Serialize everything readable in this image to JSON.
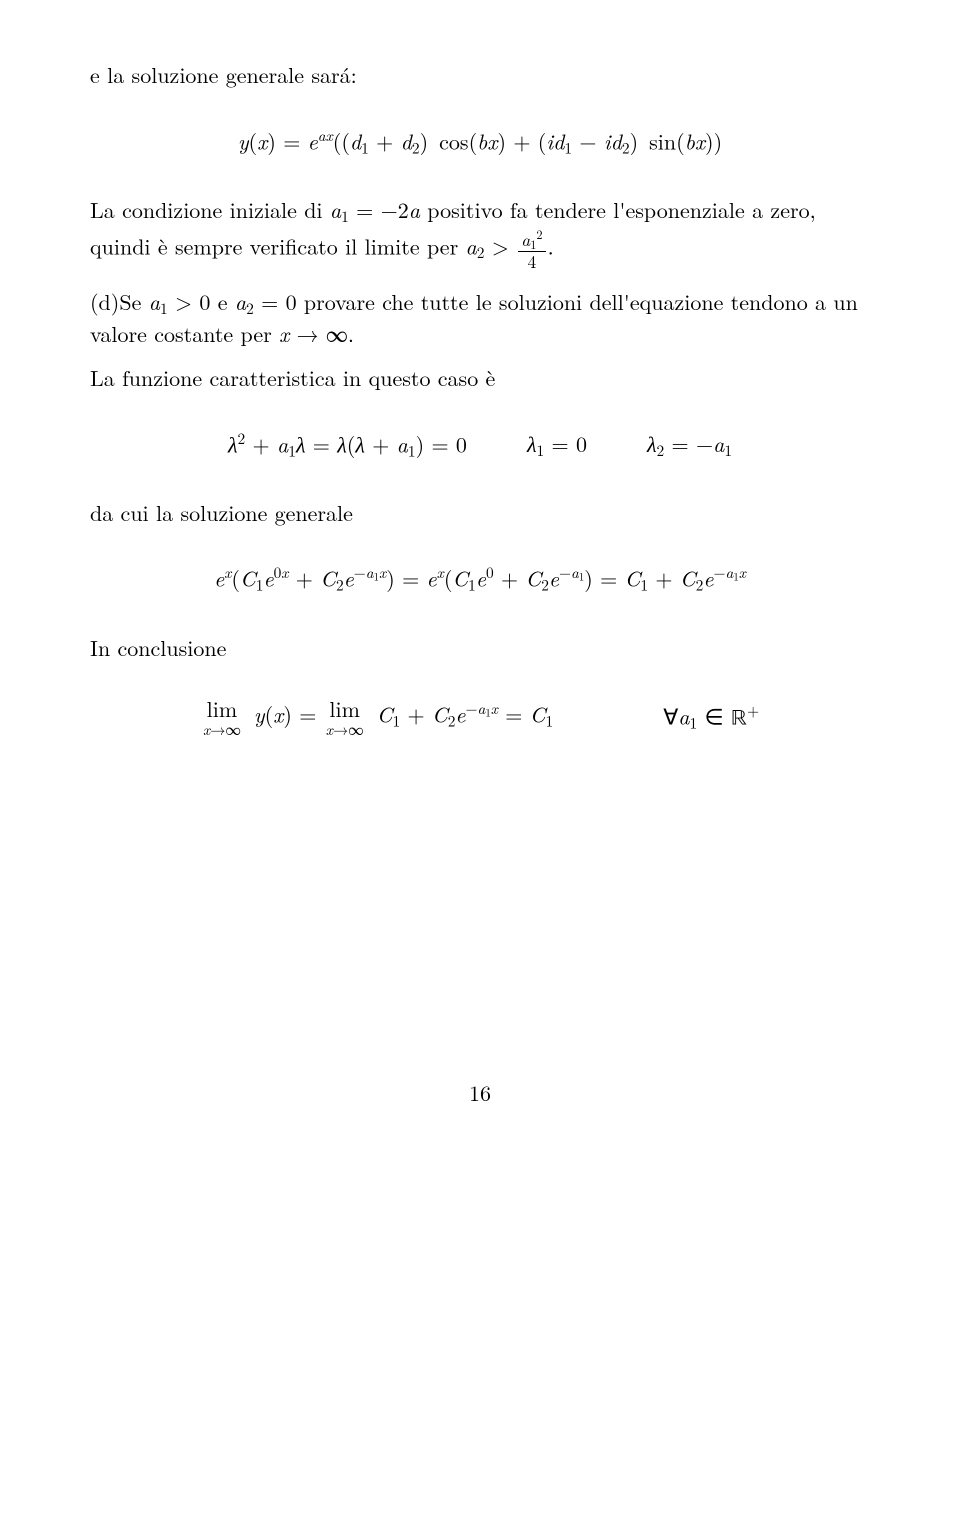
{
  "p1": "e la soluzione generale sará:",
  "eq1_html": "<span class='it'>y</span>(<span class='it'>x</span>) = <span class='it'>e</span><sup><span class='it'>ax</span></sup>((<span class='it'>d</span><sub>1</sub> + <span class='it'>d</span><sub>2</sub>)&nbsp;cos(<span class='it'>bx</span>) + (<span class='it'>id</span><sub>1</sub> − <span class='it'>id</span><sub>2</sub>)&nbsp;sin(<span class='it'>bx</span>))",
  "p2_html": "La condizione iniziale di <span class='it'>a</span><sub>1</sub> = −2<span class='it'>a</span> positivo fa tendere l'esponenziale a zero, quindi è sempre verificato il limite per <span class='it'>a</span><sub>2</sub> &gt; <span class='frac'><span class='num'><span class='it'>a</span><sub>1</sub><sup>2</sup></span><span class='den'>4</span></span>.",
  "p3_html": "(d)Se <span class='it'>a</span><sub>1</sub> &gt; 0 e <span class='it'>a</span><sub>2</sub> = 0 provare che tutte le soluzioni dell'equazione tendono a un valore costante per <span class='it'>x</span> → ∞.",
  "p4": "La funzione caratteristica in questo caso è",
  "eq2_left_html": "<span class='it'>λ</span><sup>2</sup> + <span class='it'>a</span><sub>1</sub><span class='it'>λ</span> = <span class='it'>λ</span>(<span class='it'>λ</span> + <span class='it'>a</span><sub>1</sub>) = 0",
  "eq2_mid_html": "<span class='it'>λ</span><sub>1</sub> = 0",
  "eq2_right_html": "<span class='it'>λ</span><sub>2</sub> = −<span class='it'>a</span><sub>1</sub>",
  "p5": "da cui la soluzione generale",
  "eq3_html": "<span class='it'>e</span><sup><span class='it'>x</span></sup>(<span class='it'>C</span><sub>1</sub><span class='it'>e</span><sup>0<span class='it'>x</span></sup> + <span class='it'>C</span><sub>2</sub><span class='it'>e</span><sup>−<span class='it'>a</span><sub>1</sub><span class='it'>x</span></sup>) = <span class='it'>e</span><sup><span class='it'>x</span></sup>(<span class='it'>C</span><sub>1</sub><span class='it'>e</span><sup>0</sup> + <span class='it'>C</span><sub>2</sub><span class='it'>e</span><sup>−<span class='it'>a</span><sub>1</sub></sup>) = <span class='it'>C</span><sub>1</sub> + <span class='it'>C</span><sub>2</sub><span class='it'>e</span><sup>−<span class='it'>a</span><sub>1</sub><span class='it'>x</span></sup>",
  "p6": "In conclusione",
  "eq4_left_html": "<span class='lim'><span class='top'>lim</span><span class='bot'><span class='it'>x</span>→∞</span></span>&nbsp;<span class='it'>y</span>(<span class='it'>x</span>) = <span class='lim'><span class='top'>lim</span><span class='bot'><span class='it'>x</span>→∞</span></span>&nbsp;<span class='it'>C</span><sub>1</sub> + <span class='it'>C</span><sub>2</sub><span class='it'>e</span><sup>−<span class='it'>a</span><sub>1</sub><span class='it'>x</span></sup> = <span class='it'>C</span><sub>1</sub>",
  "eq4_right_html": "∀<span class='it'>a</span><sub>1</sub> ∈ <span class='bb'>ℝ</span><sup>+</sup>",
  "pagenum": "16"
}
